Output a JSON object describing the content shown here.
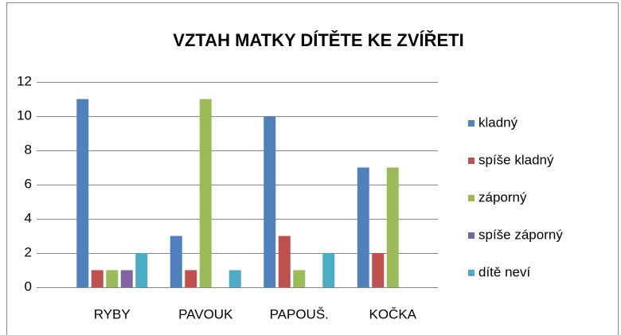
{
  "chart_data": {
    "type": "bar",
    "title": "VZTAH MATKY DÍTĚTE KE ZVÍŘETI",
    "categories": [
      "RYBY",
      "PAVOUK",
      "PAPOUŠ.",
      "KOČKA"
    ],
    "series": [
      {
        "name": "kladný",
        "color": "#4f81bd",
        "values": [
          11,
          3,
          10,
          7
        ]
      },
      {
        "name": "spíše kladný",
        "color": "#c0504d",
        "values": [
          1,
          1,
          3,
          2
        ]
      },
      {
        "name": "záporný",
        "color": "#9bbb59",
        "values": [
          1,
          11,
          1,
          7
        ]
      },
      {
        "name": "spíše záporný",
        "color": "#8064a2",
        "values": [
          1,
          0,
          0,
          0
        ]
      },
      {
        "name": "dítě neví",
        "color": "#4bacc6",
        "values": [
          2,
          1,
          2,
          0
        ]
      }
    ],
    "ylim": [
      0,
      12
    ],
    "yticks": [
      0,
      2,
      4,
      6,
      8,
      10,
      12
    ],
    "grid": true,
    "legend": "right"
  }
}
